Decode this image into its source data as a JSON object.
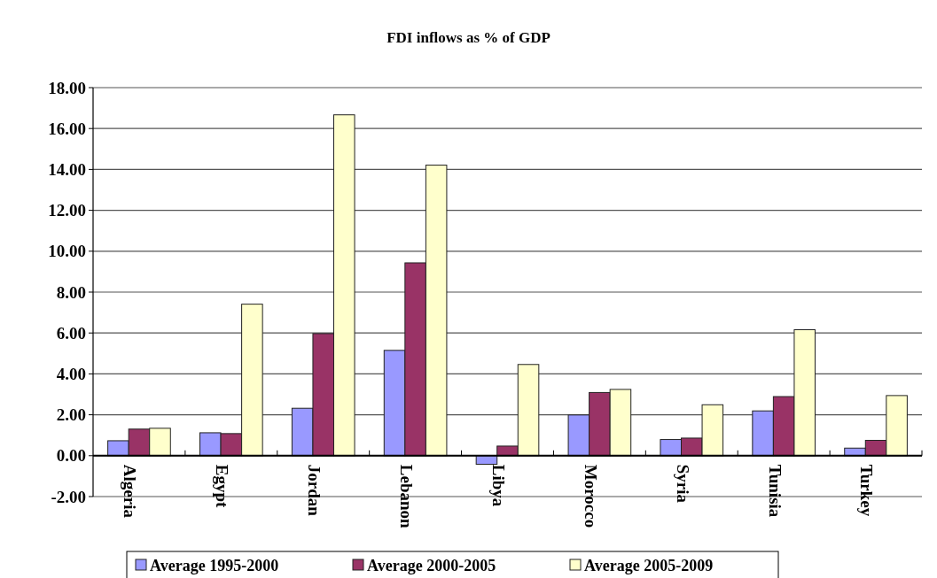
{
  "chart_data": {
    "type": "bar",
    "title": "FDI inflows as % of GDP",
    "categories": [
      "Algeria",
      "Egypt",
      "Jordan",
      "Lebanon",
      "Libya",
      "Morocco",
      "Syria",
      "Tunisia",
      "Turkey"
    ],
    "series": [
      {
        "name": "Average 1995-2000",
        "color": "#9999ff",
        "values": [
          0.73,
          1.12,
          2.32,
          5.15,
          -0.42,
          1.99,
          0.79,
          2.19,
          0.37
        ]
      },
      {
        "name": "Average 2000-2005",
        "color": "#993366",
        "values": [
          1.3,
          1.08,
          5.97,
          9.43,
          0.47,
          3.09,
          0.86,
          2.89,
          0.75
        ]
      },
      {
        "name": "Average 2005-2009",
        "color": "#ffffcc",
        "values": [
          1.34,
          7.41,
          16.67,
          14.21,
          4.46,
          3.24,
          2.49,
          6.16,
          2.94
        ]
      }
    ],
    "ylim": [
      -2,
      18
    ],
    "yticks": [
      {
        "value": -2,
        "label": "-2.00"
      },
      {
        "value": 0,
        "label": "0.00"
      },
      {
        "value": 2,
        "label": "2.00"
      },
      {
        "value": 4,
        "label": "4.00"
      },
      {
        "value": 6,
        "label": "6.00"
      },
      {
        "value": 8,
        "label": "8.00"
      },
      {
        "value": 10,
        "label": "10.00"
      },
      {
        "value": 12,
        "label": "12.00"
      },
      {
        "value": 14,
        "label": "14.00"
      },
      {
        "value": 16,
        "label": "16.00"
      },
      {
        "value": 18,
        "label": "18.00"
      }
    ],
    "grid": "y",
    "legend": "bottom"
  }
}
